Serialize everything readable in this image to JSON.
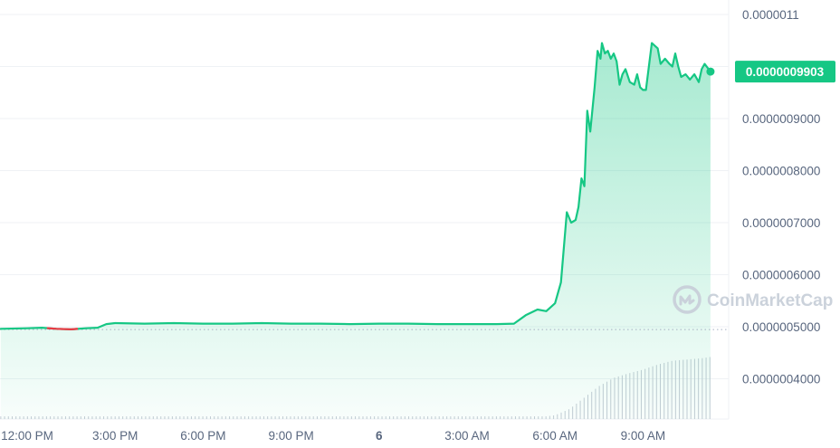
{
  "chart_data": {
    "type": "area",
    "y_ticks": [
      {
        "value": 1.1e-06,
        "label": "0.0000011"
      },
      {
        "value": 9e-07,
        "label": "0.0000009000"
      },
      {
        "value": 8e-07,
        "label": "0.0000008000"
      },
      {
        "value": 7e-07,
        "label": "0.0000007000"
      },
      {
        "value": 6e-07,
        "label": "0.0000006000"
      },
      {
        "value": 5e-07,
        "label": "0.0000005000"
      },
      {
        "value": 4e-07,
        "label": "0.0000004000"
      }
    ],
    "x_ticks": [
      {
        "hour": 0,
        "label": "12:00 PM",
        "bold": false
      },
      {
        "hour": 3,
        "label": "3:00 PM",
        "bold": false
      },
      {
        "hour": 6,
        "label": "6:00 PM",
        "bold": false
      },
      {
        "hour": 9,
        "label": "9:00 PM",
        "bold": false
      },
      {
        "hour": 12,
        "label": "6",
        "bold": true
      },
      {
        "hour": 15,
        "label": "3:00 AM",
        "bold": false
      },
      {
        "hour": 18,
        "label": "6:00 AM",
        "bold": false
      },
      {
        "hour": 21,
        "label": "9:00 AM",
        "bold": false
      }
    ],
    "current_price": {
      "value": 9.903e-07,
      "label": "0.0000009903"
    },
    "reference_price": 4.98e-07,
    "line_color": "#16c784",
    "down_color": "#ea3943",
    "red_segment_hours": [
      0.7,
      1.7
    ],
    "series": {
      "x": [
        -0.9,
        0,
        0.5,
        1,
        1.5,
        2,
        2.4,
        2.7,
        3,
        4,
        5,
        6,
        7,
        8,
        9,
        10,
        11,
        12,
        13,
        14,
        15,
        16,
        16.6,
        17,
        17.4,
        17.7,
        18,
        18.2,
        18.4,
        18.55,
        18.7,
        18.8,
        18.9,
        19.0,
        19.1,
        19.2,
        19.35,
        19.45,
        19.55,
        19.6,
        19.7,
        19.8,
        19.9,
        20.0,
        20.1,
        20.2,
        20.3,
        20.4,
        20.55,
        20.7,
        20.8,
        20.9,
        21.0,
        21.1,
        21.3,
        21.5,
        21.6,
        21.75,
        21.9,
        22.0,
        22.1,
        22.2,
        22.3,
        22.45,
        22.6,
        22.75,
        22.9,
        23.0,
        23.1,
        23.3
      ],
      "y": [
        4.96e-07,
        4.97e-07,
        4.98e-07,
        4.96e-07,
        4.95e-07,
        4.97e-07,
        4.98e-07,
        5.05e-07,
        5.07e-07,
        5.06e-07,
        5.07e-07,
        5.06e-07,
        5.06e-07,
        5.07e-07,
        5.06e-07,
        5.06e-07,
        5.05e-07,
        5.06e-07,
        5.06e-07,
        5.05e-07,
        5.05e-07,
        5.05e-07,
        5.06e-07,
        5.22e-07,
        5.33e-07,
        5.3e-07,
        5.45e-07,
        5.85e-07,
        7.2e-07,
        7e-07,
        7.05e-07,
        7.3e-07,
        7.85e-07,
        7.7e-07,
        9.15e-07,
        8.75e-07,
        9.6e-07,
        1.03e-06,
        1.015e-06,
        1.045e-06,
        1.025e-06,
        1.03e-06,
        1.015e-06,
        1.025e-06,
        1.01e-06,
        9.65e-07,
        9.85e-07,
        9.95e-07,
        9.7e-07,
        9.65e-07,
        9.85e-07,
        9.6e-07,
        9.55e-07,
        9.55e-07,
        1.045e-06,
        1.035e-06,
        1.005e-06,
        1.015e-06,
        1.005e-06,
        1e-06,
        1.025e-06,
        1e-06,
        9.8e-07,
        9.85e-07,
        9.75e-07,
        9.85e-07,
        9.7e-07,
        9.95e-07,
        1.005e-06,
        9.903e-07
      ]
    },
    "volume": {
      "x": [
        -0.9,
        17.5,
        18.0,
        18.5,
        19.0,
        19.5,
        20.0,
        20.5,
        21.0,
        21.5,
        22.0,
        22.5,
        23.0,
        23.3
      ],
      "relative": [
        0.02,
        0.03,
        0.06,
        0.16,
        0.34,
        0.52,
        0.65,
        0.72,
        0.78,
        0.86,
        0.92,
        0.94,
        0.96,
        0.98
      ]
    }
  },
  "watermark": {
    "text": "CoinMarketCap",
    "icon": "coinmarketcap-logo-icon"
  }
}
